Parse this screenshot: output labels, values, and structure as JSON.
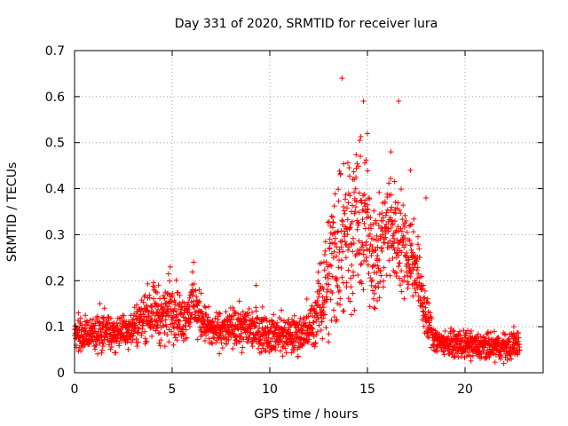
{
  "chart_data": {
    "type": "scatter",
    "title": "Day 331 of 2020, SRMTID for receiver lura",
    "xlabel": "GPS time / hours",
    "ylabel": "SRMTID / TECUs",
    "xlim": [
      0,
      24
    ],
    "ylim": [
      0,
      0.7
    ],
    "xticks": [
      0,
      5,
      10,
      15,
      20
    ],
    "xtick_labels": [
      "0",
      "5",
      "10",
      "15",
      "20"
    ],
    "yticks": [
      0,
      0.1,
      0.2,
      0.3,
      0.4,
      0.5,
      0.6,
      0.7
    ],
    "ytick_labels": [
      "0",
      "0.1",
      "0.2",
      "0.3",
      "0.4",
      "0.5",
      "0.6",
      "0.7"
    ],
    "grid": true,
    "marker": "+",
    "color": "#ff0000",
    "x_range_data": [
      0,
      22.8
    ],
    "series": [
      {
        "name": "SRMTID",
        "envelope": {
          "x": [
            0,
            1,
            2,
            3,
            3.5,
            4,
            4.5,
            5,
            5.5,
            6,
            7,
            8,
            9,
            10,
            11,
            12,
            12.5,
            13,
            13.5,
            14,
            14.5,
            15,
            15.5,
            16,
            16.5,
            17,
            17.5,
            18,
            18.5,
            19,
            20,
            21,
            22,
            22.8
          ],
          "mean": [
            0.08,
            0.09,
            0.085,
            0.1,
            0.12,
            0.14,
            0.12,
            0.15,
            0.11,
            0.15,
            0.09,
            0.095,
            0.1,
            0.085,
            0.08,
            0.09,
            0.14,
            0.22,
            0.28,
            0.32,
            0.33,
            0.31,
            0.24,
            0.32,
            0.3,
            0.27,
            0.24,
            0.12,
            0.07,
            0.065,
            0.06,
            0.055,
            0.055,
            0.065
          ],
          "spread": [
            0.03,
            0.035,
            0.03,
            0.035,
            0.045,
            0.05,
            0.05,
            0.06,
            0.04,
            0.05,
            0.03,
            0.035,
            0.04,
            0.035,
            0.035,
            0.035,
            0.06,
            0.12,
            0.16,
            0.16,
            0.14,
            0.12,
            0.1,
            0.1,
            0.09,
            0.09,
            0.07,
            0.05,
            0.025,
            0.02,
            0.025,
            0.025,
            0.025,
            0.025
          ]
        },
        "points_per_hour": 100,
        "peaks": [
          {
            "x": 13.7,
            "y": 0.64
          },
          {
            "x": 14.8,
            "y": 0.59
          },
          {
            "x": 15.0,
            "y": 0.52
          },
          {
            "x": 16.6,
            "y": 0.59
          },
          {
            "x": 16.2,
            "y": 0.48
          },
          {
            "x": 17.2,
            "y": 0.44
          },
          {
            "x": 18.0,
            "y": 0.38
          },
          {
            "x": 4.9,
            "y": 0.23
          },
          {
            "x": 6.1,
            "y": 0.24
          },
          {
            "x": 9.3,
            "y": 0.19
          },
          {
            "x": 11.9,
            "y": 0.16
          },
          {
            "x": 0.2,
            "y": 0.13
          },
          {
            "x": 1.3,
            "y": 0.15
          },
          {
            "x": 21.5,
            "y": 0.09
          },
          {
            "x": 22.5,
            "y": 0.1
          }
        ]
      }
    ]
  }
}
